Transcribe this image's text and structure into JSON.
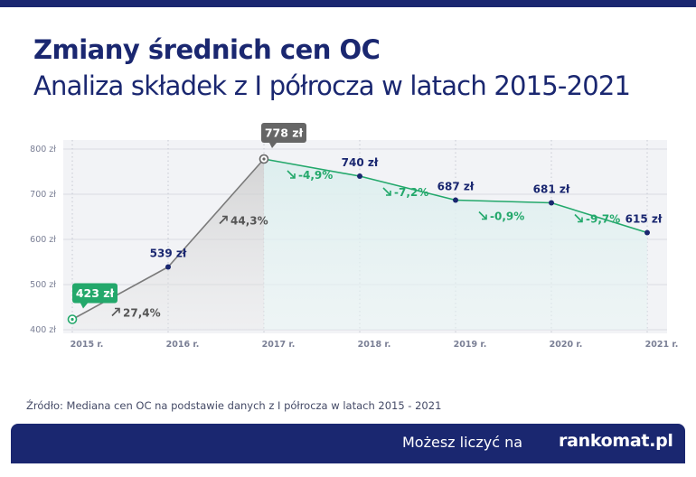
{
  "header": {
    "title": "Zmiany średnich cen OC",
    "subtitle": "Analiza składek z I półrocza w latach 2015-2021"
  },
  "chart_data": {
    "type": "line",
    "x": [
      "2015 r.",
      "2016 r.",
      "2017 r.",
      "2018 r.",
      "2019 r.",
      "2020 r.",
      "2021 r."
    ],
    "values": [
      423,
      539,
      778,
      740,
      687,
      681,
      615
    ],
    "point_labels": [
      "423 zł",
      "539 zł",
      "778 zł",
      "740 zł",
      "687 zł",
      "681 zł",
      "615 zł"
    ],
    "ylim": [
      400,
      800
    ],
    "yticks": [
      400,
      500,
      600,
      700,
      800
    ],
    "ytick_labels": [
      "400 zł",
      "500 zł",
      "600 zł",
      "700 zł",
      "800 zł"
    ],
    "changes": [
      {
        "label": "27,4%",
        "direction": "up"
      },
      {
        "label": "44,3%",
        "direction": "up"
      },
      {
        "label": "-4,9%",
        "direction": "down"
      },
      {
        "label": "-7,2%",
        "direction": "down"
      },
      {
        "label": "-0,9%",
        "direction": "down"
      },
      {
        "label": "-9,7%",
        "direction": "down"
      }
    ],
    "grid": "horizontal",
    "colors": {
      "rising": "#7a7a7a",
      "falling": "#23a86b",
      "points": "#1a2770",
      "highlight_min": "#23a86b",
      "highlight_max": "#666666"
    }
  },
  "source": "Źródło: Mediana cen OC na podstawie danych z I półrocza w latach 2015 - 2021",
  "footer": {
    "tagline": "Możesz liczyć na",
    "logo": "rankomat.pl"
  }
}
